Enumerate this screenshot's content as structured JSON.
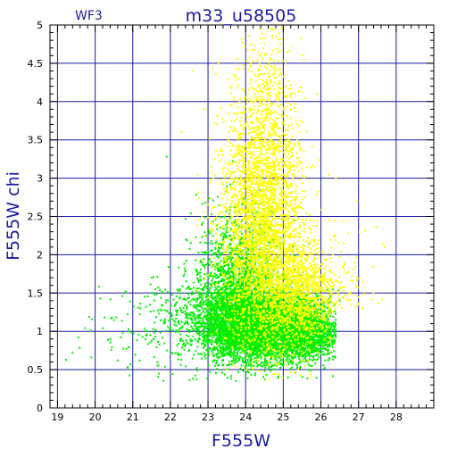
{
  "chart_data": {
    "type": "scatter",
    "title": "m33_u58505",
    "corner_label": "WF3",
    "xlabel": "F555W",
    "ylabel": "F555W  chi",
    "xlim": [
      18.8,
      29.0
    ],
    "ylim": [
      0,
      5
    ],
    "xticks": [
      19,
      20,
      21,
      22,
      23,
      24,
      25,
      26,
      27,
      28
    ],
    "yticks": [
      0,
      0.5,
      1,
      1.5,
      2,
      2.5,
      3,
      3.5,
      4,
      4.5,
      5
    ],
    "ytick_labels": [
      "0",
      "0.5",
      "1",
      "1.5",
      "2",
      "2.5",
      "3",
      "3.5",
      "4",
      "4.5",
      "5"
    ],
    "grid": true,
    "colors": {
      "axis_text": "#1a1aa0",
      "grid": "#1a1aa0",
      "frame": "#000000"
    },
    "series": [
      {
        "color": "#00ee00",
        "clusters": [
          {
            "x_center": 24.4,
            "y_center": 1.08,
            "x_spread": 0.75,
            "y_spread": 0.22,
            "count": 5200
          },
          {
            "x_center": 23.7,
            "y_center": 1.35,
            "x_spread": 0.55,
            "y_spread": 0.35,
            "count": 1400
          },
          {
            "x_center": 25.6,
            "y_center": 1.0,
            "x_spread": 0.45,
            "y_spread": 0.2,
            "count": 1300
          },
          {
            "x_center": 23.9,
            "y_center": 1.9,
            "x_spread": 0.6,
            "y_spread": 0.4,
            "count": 700
          },
          {
            "x_center": 22.3,
            "y_center": 1.1,
            "x_spread": 0.7,
            "y_spread": 0.3,
            "count": 250
          },
          {
            "x_center": 20.8,
            "y_center": 0.95,
            "x_spread": 0.9,
            "y_spread": 0.3,
            "count": 40
          }
        ],
        "points": [
          [
            19.4,
            0.72
          ],
          [
            19.9,
            0.66
          ],
          [
            20.1,
            1.58
          ],
          [
            20.6,
            0.62
          ],
          [
            20.9,
            1.0
          ],
          [
            21.2,
            1.3
          ],
          [
            21.5,
            1.7
          ],
          [
            21.9,
            3.28
          ],
          [
            21.6,
            1.55
          ],
          [
            20.4,
            0.9
          ]
        ]
      },
      {
        "color": "#ffff00",
        "clusters": [
          {
            "x_center": 24.4,
            "y_center": 2.2,
            "x_spread": 0.55,
            "y_spread": 0.7,
            "count": 2600
          },
          {
            "x_center": 24.5,
            "y_center": 3.4,
            "x_spread": 0.5,
            "y_spread": 0.6,
            "count": 700
          },
          {
            "x_center": 25.4,
            "y_center": 1.5,
            "x_spread": 0.5,
            "y_spread": 0.35,
            "count": 1200
          },
          {
            "x_center": 24.5,
            "y_center": 4.3,
            "x_spread": 0.35,
            "y_spread": 0.4,
            "count": 150
          },
          {
            "x_center": 26.6,
            "y_center": 1.6,
            "x_spread": 0.45,
            "y_spread": 0.4,
            "count": 90
          }
        ],
        "points": [
          [
            27.7,
            2.1
          ],
          [
            27.4,
            1.5
          ],
          [
            26.9,
            1.9
          ],
          [
            22.6,
            4.4
          ],
          [
            22.3,
            3.6
          ],
          [
            24.7,
            4.95
          ],
          [
            26.4,
            3.0
          ],
          [
            25.9,
            4.1
          ],
          [
            22.9,
            3.9
          ],
          [
            27.1,
            1.3
          ]
        ]
      }
    ]
  }
}
